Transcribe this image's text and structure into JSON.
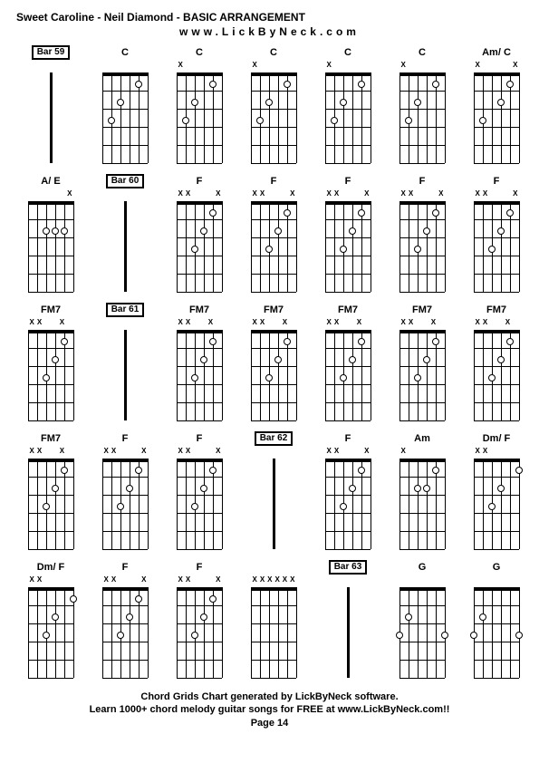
{
  "title": "Sweet Caroline - Neil Diamond - BASIC ARRANGEMENT",
  "url": "www.LickByNeck.com",
  "footer_line1": "Chord Grids Chart generated by LickByNeck software.",
  "footer_line2": "Learn 1000+ chord melody guitar songs for FREE at www.LickByNeck.com!!",
  "page_label": "Page 14",
  "colors": {
    "background": "#ffffff",
    "line": "#000000",
    "dot_fill": "#ffffff",
    "dot_border": "#000000",
    "text": "#000000"
  },
  "layout": {
    "cols": 7,
    "rows": 5,
    "diagram_width": 50,
    "diagram_height": 100,
    "frets": 5,
    "strings": 6
  },
  "cells": [
    {
      "type": "bar",
      "label": "Bar 59"
    },
    {
      "type": "chord",
      "label": "C",
      "mutes": [
        "",
        "",
        "",
        "",
        "",
        ""
      ],
      "dots": [
        [
          5,
          3
        ],
        [
          4,
          2
        ],
        [
          2,
          1
        ]
      ],
      "side": "left"
    },
    {
      "type": "chord",
      "label": "C",
      "mutes": [
        "X",
        "",
        "",
        "",
        "",
        ""
      ],
      "dots": [
        [
          5,
          3
        ],
        [
          4,
          2
        ],
        [
          2,
          1
        ]
      ],
      "side": "right"
    },
    {
      "type": "chord",
      "label": "C",
      "mutes": [
        "X",
        "",
        "",
        "",
        "",
        ""
      ],
      "dots": [
        [
          5,
          3
        ],
        [
          4,
          2
        ],
        [
          2,
          1
        ]
      ],
      "side": "right"
    },
    {
      "type": "chord",
      "label": "C",
      "mutes": [
        "X",
        "",
        "",
        "",
        "",
        ""
      ],
      "dots": [
        [
          5,
          3
        ],
        [
          4,
          2
        ],
        [
          2,
          1
        ]
      ],
      "side": "right"
    },
    {
      "type": "chord",
      "label": "C",
      "mutes": [
        "X",
        "",
        "",
        "",
        "",
        ""
      ],
      "dots": [
        [
          5,
          3
        ],
        [
          4,
          2
        ],
        [
          2,
          1
        ]
      ],
      "side": "right"
    },
    {
      "type": "chord",
      "label": "Am/ C",
      "mutes": [
        "X",
        "",
        "",
        "",
        "",
        "X"
      ],
      "dots": [
        [
          5,
          3
        ],
        [
          3,
          2
        ],
        [
          2,
          1
        ]
      ],
      "side": "none"
    },
    {
      "type": "chord",
      "label": "A/ E",
      "mutes": [
        "",
        "",
        "",
        "",
        "",
        "X"
      ],
      "dots": [
        [
          4,
          2
        ],
        [
          3,
          2
        ],
        [
          2,
          2
        ]
      ],
      "side": "left"
    },
    {
      "type": "bar",
      "label": "Bar 60"
    },
    {
      "type": "chord",
      "label": "F",
      "mutes": [
        "X",
        "X",
        "",
        "",
        "",
        "X"
      ],
      "dots": [
        [
          4,
          3
        ],
        [
          3,
          2
        ],
        [
          2,
          1
        ]
      ],
      "side": "left"
    },
    {
      "type": "chord",
      "label": "F",
      "mutes": [
        "X",
        "X",
        "",
        "",
        "",
        "X"
      ],
      "dots": [
        [
          4,
          3
        ],
        [
          3,
          2
        ],
        [
          2,
          1
        ]
      ],
      "side": "left"
    },
    {
      "type": "chord",
      "label": "F",
      "mutes": [
        "X",
        "X",
        "",
        "",
        "",
        "X"
      ],
      "dots": [
        [
          4,
          3
        ],
        [
          3,
          2
        ],
        [
          2,
          1
        ]
      ],
      "side": "right"
    },
    {
      "type": "chord",
      "label": "F",
      "mutes": [
        "X",
        "X",
        "",
        "",
        "",
        "X"
      ],
      "dots": [
        [
          4,
          3
        ],
        [
          3,
          2
        ],
        [
          2,
          1
        ]
      ],
      "side": "right"
    },
    {
      "type": "chord",
      "label": "F",
      "mutes": [
        "X",
        "X",
        "",
        "",
        "",
        "X"
      ],
      "dots": [
        [
          4,
          3
        ],
        [
          3,
          2
        ],
        [
          2,
          1
        ]
      ],
      "side": "none"
    },
    {
      "type": "chord",
      "label": "FM7",
      "mutes": [
        "X",
        "X",
        "",
        "",
        "X",
        ""
      ],
      "dots": [
        [
          4,
          3
        ],
        [
          3,
          2
        ],
        [
          2,
          1
        ]
      ],
      "side": "left"
    },
    {
      "type": "bar",
      "label": "Bar 61"
    },
    {
      "type": "chord",
      "label": "FM7",
      "mutes": [
        "X",
        "X",
        "",
        "",
        "X",
        ""
      ],
      "dots": [
        [
          4,
          3
        ],
        [
          3,
          2
        ],
        [
          2,
          1
        ]
      ],
      "side": "left"
    },
    {
      "type": "chord",
      "label": "FM7",
      "mutes": [
        "X",
        "X",
        "",
        "",
        "X",
        ""
      ],
      "dots": [
        [
          4,
          3
        ],
        [
          3,
          2
        ],
        [
          2,
          1
        ]
      ],
      "side": "left"
    },
    {
      "type": "chord",
      "label": "FM7",
      "mutes": [
        "X",
        "X",
        "",
        "",
        "X",
        ""
      ],
      "dots": [
        [
          4,
          3
        ],
        [
          3,
          2
        ],
        [
          2,
          1
        ]
      ],
      "side": "right"
    },
    {
      "type": "chord",
      "label": "FM7",
      "mutes": [
        "X",
        "X",
        "",
        "",
        "X",
        ""
      ],
      "dots": [
        [
          4,
          3
        ],
        [
          3,
          2
        ],
        [
          2,
          1
        ]
      ],
      "side": "right"
    },
    {
      "type": "chord",
      "label": "FM7",
      "mutes": [
        "X",
        "X",
        "",
        "",
        "X",
        ""
      ],
      "dots": [
        [
          4,
          3
        ],
        [
          3,
          2
        ],
        [
          2,
          1
        ]
      ],
      "side": "none"
    },
    {
      "type": "chord",
      "label": "FM7",
      "mutes": [
        "X",
        "X",
        "",
        "",
        "X",
        ""
      ],
      "dots": [
        [
          4,
          3
        ],
        [
          3,
          2
        ],
        [
          2,
          1
        ]
      ],
      "side": "left"
    },
    {
      "type": "chord",
      "label": "F",
      "mutes": [
        "X",
        "X",
        "",
        "",
        "",
        "X"
      ],
      "dots": [
        [
          4,
          3
        ],
        [
          3,
          2
        ],
        [
          2,
          1
        ]
      ],
      "side": "none"
    },
    {
      "type": "chord",
      "label": "F",
      "mutes": [
        "X",
        "X",
        "",
        "",
        "",
        "X"
      ],
      "dots": [
        [
          4,
          3
        ],
        [
          3,
          2
        ],
        [
          2,
          1
        ]
      ],
      "side": "right"
    },
    {
      "type": "bar",
      "label": "Bar 62"
    },
    {
      "type": "chord",
      "label": "F",
      "mutes": [
        "X",
        "X",
        "",
        "",
        "",
        "X"
      ],
      "dots": [
        [
          4,
          3
        ],
        [
          3,
          2
        ],
        [
          2,
          1
        ]
      ],
      "side": "left"
    },
    {
      "type": "chord",
      "label": "Am",
      "mutes": [
        "X",
        "",
        "",
        "",
        "",
        ""
      ],
      "dots": [
        [
          4,
          2
        ],
        [
          3,
          2
        ],
        [
          2,
          1
        ]
      ],
      "side": "none"
    },
    {
      "type": "chord",
      "label": "Dm/ F",
      "mutes": [
        "X",
        "X",
        "",
        "",
        "",
        ""
      ],
      "dots": [
        [
          4,
          3
        ],
        [
          3,
          2
        ],
        [
          1,
          1
        ]
      ],
      "side": "none"
    },
    {
      "type": "chord",
      "label": "Dm/ F",
      "mutes": [
        "X",
        "X",
        "",
        "",
        "",
        ""
      ],
      "dots": [
        [
          4,
          3
        ],
        [
          3,
          2
        ],
        [
          1,
          1
        ]
      ],
      "side": "left"
    },
    {
      "type": "chord",
      "label": "F",
      "mutes": [
        "X",
        "X",
        "",
        "",
        "",
        "X"
      ],
      "dots": [
        [
          4,
          3
        ],
        [
          3,
          2
        ],
        [
          2,
          1
        ]
      ],
      "side": "none"
    },
    {
      "type": "chord",
      "label": "F",
      "mutes": [
        "X",
        "X",
        "",
        "",
        "",
        "X"
      ],
      "dots": [
        [
          4,
          3
        ],
        [
          3,
          2
        ],
        [
          2,
          1
        ]
      ],
      "side": "right"
    },
    {
      "type": "blank",
      "label": "",
      "mutes": [
        "X",
        "X",
        "X",
        "X",
        "X",
        "X"
      ],
      "dots": [],
      "side": "none"
    },
    {
      "type": "bar",
      "label": "Bar 63"
    },
    {
      "type": "chord",
      "label": "G",
      "mutes": [
        "",
        "",
        "",
        "",
        "",
        ""
      ],
      "dots": [
        [
          6,
          3
        ],
        [
          5,
          2
        ],
        [
          1,
          3
        ]
      ],
      "side": "left"
    },
    {
      "type": "chord",
      "label": "G",
      "mutes": [
        "",
        "",
        "",
        "",
        "",
        ""
      ],
      "dots": [
        [
          6,
          3
        ],
        [
          5,
          2
        ],
        [
          1,
          3
        ]
      ],
      "side": "right"
    }
  ]
}
